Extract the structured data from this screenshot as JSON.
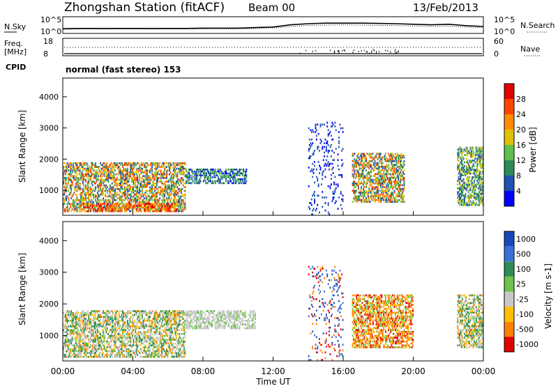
{
  "header": {
    "title": "Zhongshan Station (fitACF)",
    "beam": "Beam 00",
    "date": "13/Feb/2013"
  },
  "colors": {
    "line": "#000000",
    "panel_border": "#000000",
    "background": "#ffffff"
  },
  "chart_data": [
    {
      "type": "line",
      "panel": "noise",
      "left_label": "N.Sky",
      "right_label": "N.Search",
      "left_ticks": [
        "10^5",
        "10^0"
      ],
      "right_ticks": [
        "10^5",
        "10^0"
      ],
      "x_hours": [
        0,
        1,
        2,
        3,
        4,
        5,
        6,
        7,
        8,
        9,
        10,
        11,
        12,
        13,
        14,
        15,
        16,
        17,
        18,
        19,
        20,
        21,
        22,
        23,
        24
      ],
      "series": [
        {
          "style": "solid",
          "log_values": [
            1.2,
            1.3,
            1.3,
            1.3,
            1.3,
            1.3,
            1.3,
            1.3,
            1.4,
            1.4,
            1.4,
            1.6,
            1.8,
            2.6,
            3.0,
            3.2,
            3.2,
            3.2,
            3.1,
            3.0,
            2.8,
            2.6,
            2.8,
            2.3,
            2.0
          ]
        },
        {
          "style": "dotted",
          "log_values": [
            1.0,
            1.1,
            1.1,
            1.1,
            1.1,
            1.1,
            1.1,
            1.1,
            1.2,
            1.2,
            1.2,
            1.3,
            1.5,
            2.0,
            2.4,
            2.5,
            2.6,
            2.5,
            2.4,
            2.3,
            2.2,
            2.0,
            2.1,
            1.8,
            1.6
          ]
        }
      ]
    },
    {
      "type": "scatter",
      "panel": "frequency-nave",
      "left_label": "Freq.",
      "left_unit": "[MHz]",
      "right_label": "Nave",
      "left_ticks": [
        "18",
        "8"
      ],
      "right_ticks": [
        "60",
        "0"
      ],
      "series": [
        {
          "style": "solid",
          "value": 8.5
        },
        {
          "style": "dotted",
          "value": 30
        }
      ]
    },
    {
      "type": "heatmap",
      "panel": "power",
      "ylabel": "Slant Range [km]",
      "yticks": [
        "1000",
        "2000",
        "3000",
        "4000"
      ],
      "ylim": [
        200,
        4600
      ],
      "colorbar_label": "Power [dB]",
      "colorbar_ticks": [
        "4",
        "8",
        "12",
        "16",
        "20",
        "24",
        "28"
      ],
      "colorbar_colors": [
        "#0000ff",
        "#2050b0",
        "#2e8b57",
        "#5fbf4f",
        "#e0c000",
        "#ff8c00",
        "#ff4500",
        "#e00000"
      ],
      "regions": [
        {
          "t0": 0.0,
          "t1": 7.0,
          "r0": 300,
          "r1": 1900,
          "level": "high"
        },
        {
          "t0": 1.0,
          "t1": 6.5,
          "r0": 300,
          "r1": 600,
          "level": "very-high"
        },
        {
          "t0": 7.0,
          "t1": 10.5,
          "r0": 1200,
          "r1": 1700,
          "level": "low"
        },
        {
          "t0": 14.0,
          "t1": 16.0,
          "r0": 200,
          "r1": 3200,
          "level": "sparse"
        },
        {
          "t0": 16.5,
          "t1": 19.5,
          "r0": 600,
          "r1": 2200,
          "level": "high"
        },
        {
          "t0": 22.5,
          "t1": 24.0,
          "r0": 500,
          "r1": 2400,
          "level": "medium"
        }
      ]
    },
    {
      "type": "heatmap",
      "panel": "velocity",
      "ylabel": "Slant Range [km]",
      "yticks": [
        "1000",
        "2000",
        "3000",
        "4000"
      ],
      "ylim": [
        200,
        4600
      ],
      "colorbar_label": "Velocity [m s-1]",
      "colorbar_ticks": [
        "1000",
        "500",
        "100",
        "25",
        "-25",
        "-100",
        "-500",
        "-1000"
      ],
      "colorbar_colors": [
        "#1848b8",
        "#3a70d8",
        "#2e8b57",
        "#6cc24a",
        "#c8c8c8",
        "#ffc000",
        "#ff8000",
        "#e00000"
      ],
      "regions": [
        {
          "t0": 0.0,
          "t1": 7.0,
          "r0": 300,
          "r1": 1800,
          "level": "mixed"
        },
        {
          "t0": 7.0,
          "t1": 11.0,
          "r0": 1200,
          "r1": 1800,
          "level": "near-zero"
        },
        {
          "t0": 14.0,
          "t1": 16.0,
          "r0": 200,
          "r1": 3200,
          "level": "sparse"
        },
        {
          "t0": 16.5,
          "t1": 20.0,
          "r0": 600,
          "r1": 2300,
          "level": "negative"
        },
        {
          "t0": 22.5,
          "t1": 24.0,
          "r0": 600,
          "r1": 2300,
          "level": "mixed"
        }
      ]
    }
  ],
  "cpid": {
    "label": "CPID",
    "mode": "normal (fast stereo) 153"
  },
  "xaxis": {
    "ticks": [
      "00:00",
      "04:00",
      "08:00",
      "12:00",
      "16:00",
      "20:00",
      "00:00"
    ],
    "xlabel": "Time UT"
  }
}
